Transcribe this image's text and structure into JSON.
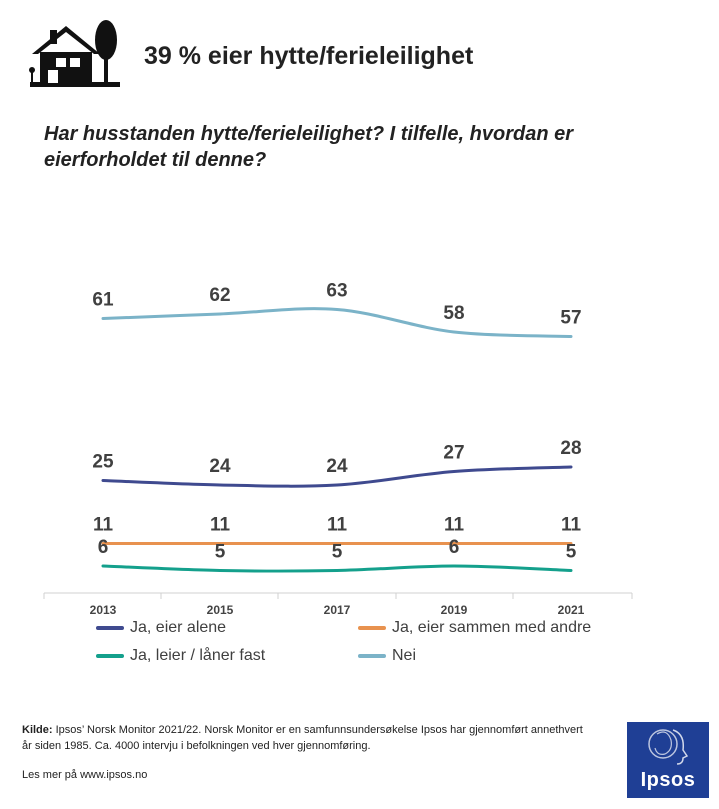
{
  "header": {
    "icon": "house-with-tree-icon",
    "headline": "39 % eier hytte/ferieleilighet",
    "question": "Har husstanden hytte/ferieleilighet? I tilfelle, hvordan er eierforholdet til denne?"
  },
  "chart_data": {
    "type": "line",
    "title": "Har husstanden hytte/ferieleilighet? I tilfelle, hvordan er eierforholdet til denne?",
    "x": [
      "2013",
      "2015",
      "2017",
      "2019",
      "2021"
    ],
    "ylim": [
      0,
      70
    ],
    "grid": false,
    "legend_position": "bottom",
    "series": [
      {
        "name": "Ja, eier alene",
        "color": "#3f4a8f",
        "values": [
          25,
          24,
          24,
          27,
          28
        ]
      },
      {
        "name": "Ja, eier sammen med andre",
        "color": "#e8924f",
        "values": [
          11,
          11,
          11,
          11,
          11
        ]
      },
      {
        "name": "Ja, leier / låner fast",
        "color": "#14a08c",
        "values": [
          6,
          5,
          5,
          6,
          5
        ]
      },
      {
        "name": "Nei",
        "color": "#7bb3c8",
        "values": [
          61,
          62,
          63,
          58,
          57
        ]
      }
    ]
  },
  "footer": {
    "source_label": "Kilde:",
    "source_text": " Ipsos’ Norsk Monitor 2021/22. Norsk Monitor er en samfunnsundersøkelse  Ipsos har gjennomført annethvert  år siden 1985. Ca. 4000 intervju  i befolkningen ved hver  gjennomføring.",
    "more": "Les mer på www.ipsos.no"
  },
  "logo": {
    "text": "Ipsos",
    "color": "#1f3f95"
  }
}
